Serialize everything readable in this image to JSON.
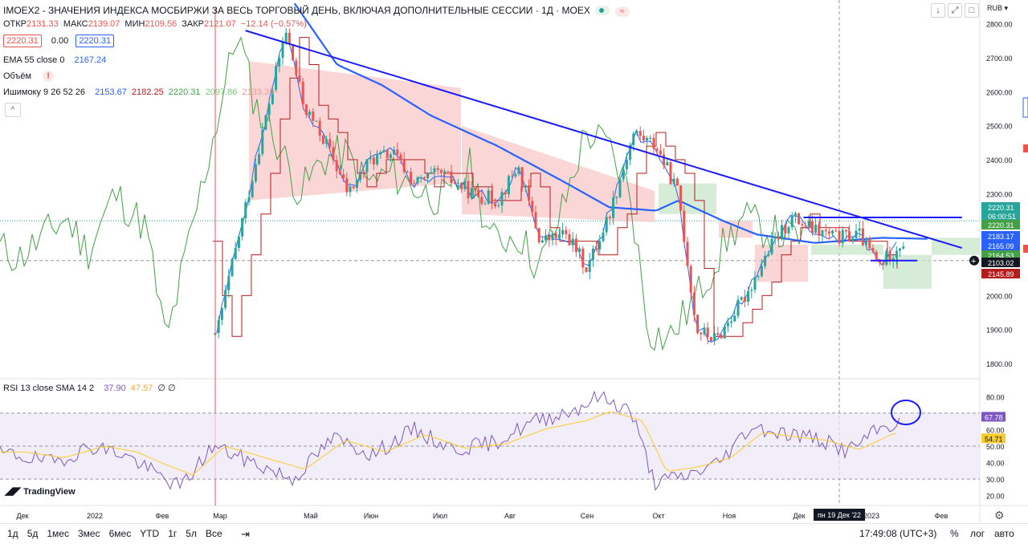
{
  "header": {
    "title": "IMOEX2 - ЗНАЧЕНИЯ ИНДЕКСА МОСБИРЖИ ЗА ВЕСЬ ТОРГОВЫЙ ДЕНЬ, ВКЛЮЧАЯ ДОПОЛНИТЕЛЬНЫЕ СЕССИИ · 1Д · MOEX",
    "currency": "RUB",
    "ohlc": {
      "o_label": "ОТКР",
      "o": "2131.33",
      "h_label": "МАКС",
      "h": "2139.07",
      "l_label": "МИН",
      "l": "2109.56",
      "c_label": "ЗАКР",
      "c": "2121.07",
      "chg": "−12.14 (−0.57%)"
    },
    "bid": "2220.31",
    "spread": "0.00",
    "ask": "2220.31",
    "ema_label": "EMA 55 close 0",
    "ema_value": "2167.24",
    "volume_label": "Объём",
    "volume_flag": "!",
    "ichimoku_label": "Ишимоку 9 26 52 26",
    "ichimoku_values": [
      "2153.67",
      "2182.25",
      "2220.31",
      "2097.86",
      "2133.39"
    ],
    "collapse": "^"
  },
  "colors": {
    "up": "#26a69a",
    "down": "#ef5350",
    "ema": "#2962ff",
    "trend": "#1a1aff",
    "tenkan": "#2962ff",
    "kijun": "#b71c1c",
    "chikou": "#43a047",
    "cloud_red": "#f8c8c8",
    "cloud_green": "#c8e6c9",
    "rsi": "#7e57c2",
    "rsi_ma": "#f9cc2b"
  },
  "price_axis": {
    "ticks": [
      "2800.00",
      "2700.00",
      "2600.00",
      "2500.00",
      "2400.00",
      "2300.00",
      "2000.00",
      "1900.00",
      "1800.00"
    ]
  },
  "price_labels": [
    {
      "text": "2220.31",
      "bg": "#26a69a"
    },
    {
      "text": "06:00:51",
      "bg": "#26a69a"
    },
    {
      "text": "2220.31",
      "bg": "#43a047"
    },
    {
      "text": "2183.17",
      "bg": "#2962ff"
    },
    {
      "text": "2165.09",
      "bg": "#2962ff"
    },
    {
      "text": "2164.53",
      "bg": "#43a047"
    },
    {
      "text": "2103.02",
      "bg": "#131722"
    },
    {
      "text": "2145.89",
      "bg": "#b71c1c"
    }
  ],
  "rsi": {
    "label": "RSI 13 close SMA 14 2",
    "value": "37.90",
    "ma": "47.57",
    "extra": "∅ ∅",
    "ticks": [
      "80.00",
      "60.00",
      "50.00",
      "40.00",
      "30.00",
      "20.00"
    ],
    "last": "67.78",
    "last_ma": "54.71"
  },
  "time_axis": {
    "labels": [
      "Дек",
      "2022",
      "Фев",
      "Мар",
      "Май",
      "Июн",
      "Июл",
      "Авг",
      "Сен",
      "Окт",
      "Ноя",
      "Дек",
      "2023",
      "Фев"
    ],
    "crosshair": "пн 19 Дек '22"
  },
  "brand": "TradingView",
  "bottom": {
    "ranges": [
      "1д",
      "5д",
      "1мес",
      "3мес",
      "6мес",
      "YTD",
      "1г",
      "5л",
      "Все"
    ],
    "time": "17:49:08 (UTC+3)",
    "pct": "%",
    "log": "лог",
    "auto": "авто"
  },
  "chart_data": {
    "type": "candlestick",
    "title": "IMOEX2 - ЗНАЧЕНИЯ ИНДЕКСА МОСБИРЖИ ЗА ВЕСЬ ТОРГОВЫЙ ДЕНЬ, ВКЛЮЧАЯ ДОПОЛНИТЕЛЬНЫЕ СЕССИИ · 1Д · MOEX",
    "ylim": [
      1760,
      2870
    ],
    "close_series": [
      [
        "2021-12-01",
        2180
      ],
      [
        "2021-12-20",
        2110
      ],
      [
        "2022-01-10",
        2230
      ],
      [
        "2022-01-20",
        2130
      ],
      [
        "2022-02-01",
        2300
      ],
      [
        "2022-02-15",
        2200
      ],
      [
        "2022-02-24",
        1860
      ],
      [
        "2022-03-28",
        2780
      ],
      [
        "2022-04-05",
        2560
      ],
      [
        "2022-04-15",
        2450
      ],
      [
        "2022-04-25",
        2300
      ],
      [
        "2022-05-05",
        2400
      ],
      [
        "2022-05-15",
        2420
      ],
      [
        "2022-05-25",
        2330
      ],
      [
        "2022-06-05",
        2360
      ],
      [
        "2022-06-20",
        2300
      ],
      [
        "2022-07-01",
        2280
      ],
      [
        "2022-07-10",
        2380
      ],
      [
        "2022-07-20",
        2160
      ],
      [
        "2022-08-01",
        2180
      ],
      [
        "2022-08-10",
        2080
      ],
      [
        "2022-08-20",
        2240
      ],
      [
        "2022-08-31",
        2480
      ],
      [
        "2022-09-10",
        2440
      ],
      [
        "2022-09-20",
        2300
      ],
      [
        "2022-09-28",
        1900
      ],
      [
        "2022-10-07",
        1870
      ],
      [
        "2022-10-20",
        2000
      ],
      [
        "2022-11-01",
        2150
      ],
      [
        "2022-11-10",
        2230
      ],
      [
        "2022-11-20",
        2190
      ],
      [
        "2022-12-01",
        2170
      ],
      [
        "2022-12-10",
        2180
      ],
      [
        "2022-12-19",
        2090
      ],
      [
        "2022-12-28",
        2150
      ],
      [
        "2023-01-05",
        2170
      ],
      [
        "2023-01-10",
        2220
      ]
    ],
    "ema55": [
      [
        "2022-04-01",
        2860
      ],
      [
        "2022-04-20",
        2680
      ],
      [
        "2022-05-10",
        2620
      ],
      [
        "2022-06-01",
        2530
      ],
      [
        "2022-07-01",
        2440
      ],
      [
        "2022-08-01",
        2330
      ],
      [
        "2022-08-20",
        2260
      ],
      [
        "2022-09-10",
        2250
      ],
      [
        "2022-09-20",
        2280
      ],
      [
        "2022-10-10",
        2220
      ],
      [
        "2022-10-25",
        2180
      ],
      [
        "2022-11-20",
        2155
      ],
      [
        "2022-12-20",
        2170
      ],
      [
        "2023-01-10",
        2167
      ]
    ],
    "trendlines": [
      {
        "from": [
          "2022-03-10",
          2780
        ],
        "to": [
          "2023-01-25",
          2140
        ]
      },
      {
        "from": [
          "2022-11-15",
          2230
        ],
        "to": [
          "2023-01-25",
          2230
        ]
      },
      {
        "from": [
          "2022-12-15",
          2103
        ],
        "to": [
          "2023-01-05",
          2103
        ]
      }
    ],
    "rsi": {
      "values": [
        [
          0,
          45
        ],
        [
          0.05,
          40
        ],
        [
          0.1,
          50
        ],
        [
          0.14,
          45
        ],
        [
          0.18,
          33
        ],
        [
          0.21,
          25
        ],
        [
          0.25,
          50
        ],
        [
          0.3,
          40
        ],
        [
          0.35,
          30
        ],
        [
          0.4,
          55
        ],
        [
          0.45,
          45
        ],
        [
          0.5,
          60
        ],
        [
          0.55,
          48
        ],
        [
          0.6,
          52
        ],
        [
          0.65,
          65
        ],
        [
          0.7,
          72
        ],
        [
          0.73,
          80
        ],
        [
          0.77,
          72
        ],
        [
          0.8,
          28
        ],
        [
          0.84,
          32
        ],
        [
          0.88,
          40
        ],
        [
          0.92,
          62
        ],
        [
          0.96,
          58
        ],
        [
          1.0,
          55
        ],
        [
          1.04,
          47
        ],
        [
          1.08,
          60
        ],
        [
          1.12,
          67.78
        ]
      ],
      "ylim": [
        15,
        85
      ],
      "levels": [
        70,
        50,
        30
      ]
    }
  }
}
